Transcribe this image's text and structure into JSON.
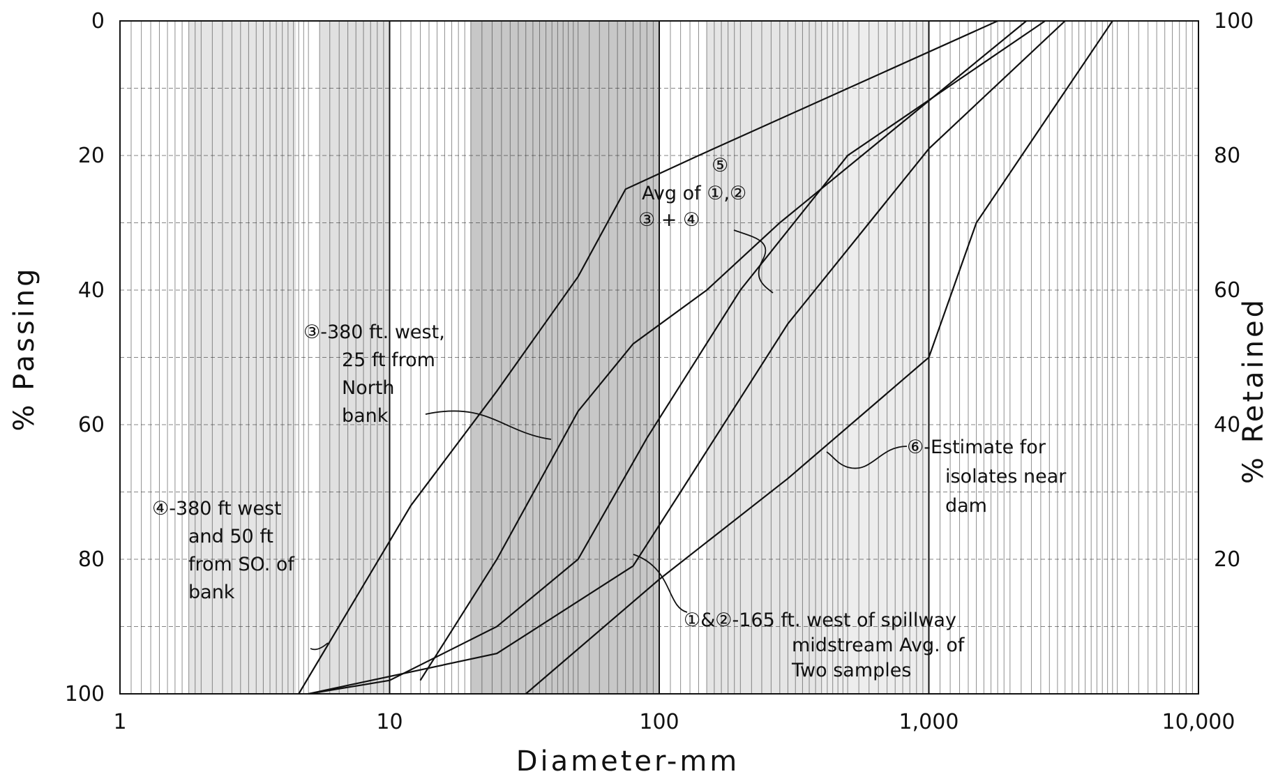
{
  "chart_data": {
    "type": "line",
    "x_scale": "log",
    "xlim": [
      1,
      10000
    ],
    "ylim": [
      0,
      100
    ],
    "y_inverted": true,
    "xlabel": "Diameter-mm",
    "ylabel": "% Passing",
    "ylabel_right": "% Retained",
    "x_tick_labels": [
      "1",
      "10",
      "100",
      "1,000",
      "10,000"
    ],
    "x_tick_values": [
      1,
      10,
      100,
      1000,
      10000
    ],
    "y_tick_labels": [
      "0",
      "20",
      "40",
      "60",
      "80",
      "100"
    ],
    "y_tick_values": [
      0,
      20,
      40,
      60,
      80,
      100
    ],
    "y2_tick_labels": [
      "100",
      "80",
      "60",
      "40",
      "20"
    ],
    "y2_tick_values": [
      0,
      20,
      40,
      60,
      80
    ],
    "grid": true,
    "series": [
      {
        "label": "4",
        "points": [
          [
            4.6,
            100
          ],
          [
            12,
            72
          ],
          [
            25,
            55
          ],
          [
            50,
            38
          ],
          [
            75,
            25
          ],
          [
            140,
            20
          ],
          [
            1800,
            0
          ]
        ]
      },
      {
        "label": "3",
        "points": [
          [
            13,
            98
          ],
          [
            25,
            80
          ],
          [
            50,
            58
          ],
          [
            80,
            48
          ],
          [
            150,
            40
          ],
          [
            280,
            30
          ],
          [
            2300,
            0
          ]
        ]
      },
      {
        "label": "5",
        "points": [
          [
            5,
            100
          ],
          [
            10,
            98
          ],
          [
            25,
            90
          ],
          [
            50,
            80
          ],
          [
            90,
            62
          ],
          [
            200,
            40
          ],
          [
            500,
            20
          ],
          [
            2700,
            0
          ]
        ]
      },
      {
        "label": "1 & 2",
        "points": [
          [
            5,
            100
          ],
          [
            25,
            94
          ],
          [
            80,
            81
          ],
          [
            120,
            70
          ],
          [
            300,
            45
          ],
          [
            1000,
            19
          ],
          [
            3200,
            0
          ]
        ]
      },
      {
        "label": "6",
        "points": [
          [
            32,
            100
          ],
          [
            100,
            83
          ],
          [
            300,
            68
          ],
          [
            1000,
            50
          ],
          [
            1500,
            30
          ],
          [
            4800,
            0
          ]
        ]
      }
    ],
    "annotations": [
      {
        "id": "a4",
        "lines": [
          "④-380 ft west",
          "and 50 ft",
          "from SO. of",
          "bank"
        ]
      },
      {
        "id": "a3",
        "lines": [
          "③-380 ft. west,",
          "25 ft from",
          "North",
          "bank"
        ]
      },
      {
        "id": "a5",
        "lines": [
          "⑤",
          "Avg of ①,②",
          "③ + ④"
        ]
      },
      {
        "id": "a6",
        "lines": [
          "⑥-Estimate for",
          "isolates near",
          "dam"
        ]
      },
      {
        "id": "a12",
        "lines": [
          "①&②-165 ft. west of spillway",
          "midstream Avg. of",
          "Two samples"
        ]
      }
    ]
  }
}
